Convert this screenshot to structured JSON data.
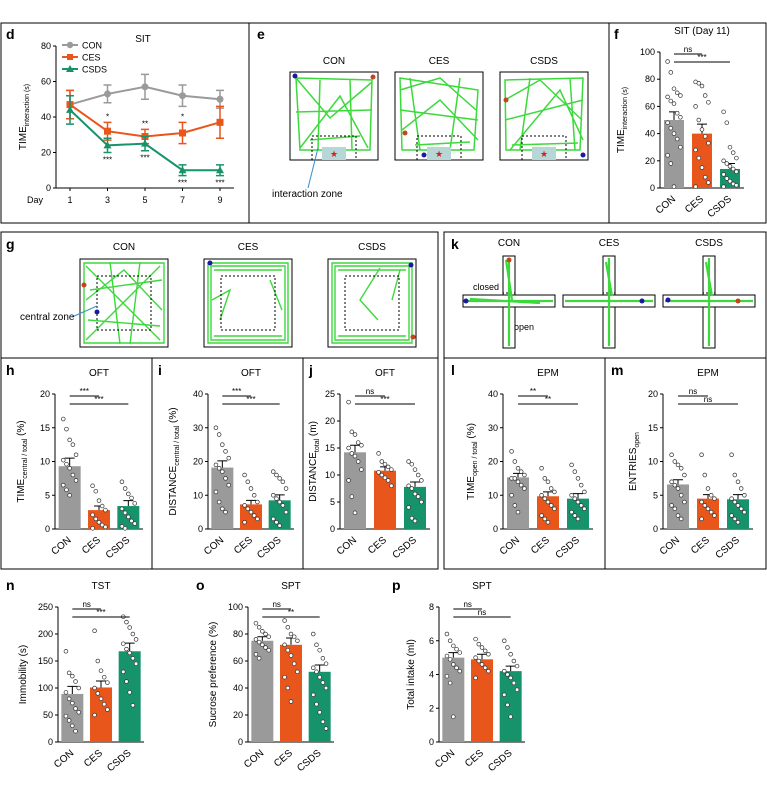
{
  "colors": {
    "con": "#9a9a9a",
    "ces": "#e8561c",
    "csds": "#17936c",
    "track": "#3cd93c"
  },
  "groups": [
    "CON",
    "CES",
    "CSDS"
  ],
  "panel_letters": {
    "d": "d",
    "e": "e",
    "f": "f",
    "g": "g",
    "k": "k",
    "h": "h",
    "i": "i",
    "j": "j",
    "l": "l",
    "m": "m",
    "n": "n",
    "o": "o",
    "p": "p"
  },
  "track_labels": {
    "e_zone": "interaction zone",
    "g_zone": "central zone",
    "k_closed": "closed",
    "k_open": "open"
  },
  "chart_data": [
    {
      "id": "d",
      "type": "line",
      "title": "SIT",
      "xlabel": "Day",
      "ylabel": "TIME interaction (s)",
      "ylabel_main": "TIME",
      "ylabel_sub": "interaction (s)",
      "x": [
        1,
        3,
        5,
        7,
        9
      ],
      "ylim": [
        0,
        80
      ],
      "yticks": [
        "0",
        "20",
        "40",
        "60",
        "80"
      ],
      "xticks": [
        "1",
        "3",
        "5",
        "7",
        "9"
      ],
      "series": [
        {
          "name": "CON",
          "values": [
            47,
            53,
            57,
            52,
            50
          ],
          "err": [
            8,
            5,
            7,
            6,
            5
          ]
        },
        {
          "name": "CES",
          "values": [
            47,
            32,
            29,
            31,
            37
          ],
          "err": [
            8,
            5,
            4,
            6,
            9
          ]
        },
        {
          "name": "CSDS",
          "values": [
            44,
            24,
            25,
            10,
            10
          ],
          "err": [
            8,
            4,
            4,
            3,
            3
          ]
        }
      ],
      "annotations": {
        "ces": [
          "*",
          "**",
          "*"
        ],
        "csds": [
          "***",
          "***",
          "***",
          "***"
        ]
      }
    },
    {
      "id": "f",
      "type": "bar",
      "title": "SIT (Day 11)",
      "ylabel": "TIME interaction (s)",
      "ylabel_main": "TIME",
      "ylabel_sub": "interaction (s)",
      "categories": [
        "CON",
        "CES",
        "CSDS"
      ],
      "values": [
        50,
        40,
        14
      ],
      "err": [
        6,
        7,
        4
      ],
      "ylim": [
        0,
        100
      ],
      "yticks": [
        "0",
        "20",
        "40",
        "60",
        "80",
        "100"
      ],
      "points": [
        [
          93,
          85,
          73,
          70,
          68,
          67,
          64,
          62,
          55,
          52,
          48,
          44,
          40,
          36,
          30,
          24,
          18,
          1
        ],
        [
          78,
          77,
          75,
          68,
          63,
          60,
          50,
          43,
          38,
          33,
          28,
          22,
          15,
          8,
          4,
          1
        ],
        [
          56,
          48,
          30,
          26,
          22,
          20,
          18,
          16,
          14,
          12,
          10,
          7,
          5,
          3,
          2,
          1
        ]
      ],
      "sig": [
        {
          "from": 0,
          "to": 1,
          "text": "ns"
        },
        {
          "from": 0,
          "to": 2,
          "text": "***"
        }
      ]
    },
    {
      "id": "h",
      "type": "bar",
      "title": "OFT",
      "ylabel": "TIME central / total (%)",
      "ylabel_main": "TIME",
      "ylabel_sub": "central / total",
      "ylabel_end": "(%)",
      "categories": [
        "CON",
        "CES",
        "CSDS"
      ],
      "values": [
        9.3,
        2.8,
        3.4
      ],
      "err": [
        1.2,
        0.6,
        0.8
      ],
      "ylim": [
        0,
        20
      ],
      "yticks": [
        "0",
        "5",
        "10",
        "15",
        "20"
      ],
      "points": [
        [
          16.3,
          14.8,
          13.2,
          12.5,
          11.0,
          10.2,
          9.6,
          9.0,
          8.0,
          7.2,
          6.5,
          5.8,
          5.0
        ],
        [
          6.4,
          5.6,
          4.2,
          3.4,
          2.8,
          2.1,
          1.5,
          1.0,
          0.6,
          0.3,
          0.1
        ],
        [
          7.0,
          6.0,
          5.2,
          4.6,
          3.8,
          3.0,
          2.4,
          1.8,
          1.2,
          0.8,
          0.4,
          0.1
        ]
      ],
      "sig": [
        {
          "from": 0,
          "to": 1,
          "text": "***"
        },
        {
          "from": 0,
          "to": 2,
          "text": "***"
        }
      ]
    },
    {
      "id": "i",
      "type": "bar",
      "title": "OFT",
      "ylabel": "DISTANCE central / total (%)",
      "ylabel_main": "DISTANCE",
      "ylabel_sub": "central / total",
      "ylabel_end": "(%)",
      "categories": [
        "CON",
        "CES",
        "CSDS"
      ],
      "values": [
        18.2,
        7.3,
        8.5
      ],
      "err": [
        2.0,
        1.2,
        1.6
      ],
      "ylim": [
        0,
        40
      ],
      "yticks": [
        "0",
        "10",
        "20",
        "30",
        "40"
      ],
      "points": [
        [
          30,
          28,
          25,
          23,
          21,
          19,
          18,
          17,
          15,
          13,
          11,
          8,
          6,
          5
        ],
        [
          16,
          14,
          12,
          10,
          8,
          7,
          6,
          5,
          4,
          3,
          2
        ],
        [
          17,
          16,
          15,
          14,
          12,
          10,
          9,
          8,
          7,
          5,
          3,
          2,
          1
        ]
      ],
      "sig": [
        {
          "from": 0,
          "to": 1,
          "text": "***"
        },
        {
          "from": 0,
          "to": 2,
          "text": "***"
        }
      ]
    },
    {
      "id": "j",
      "type": "bar",
      "title": "OFT",
      "ylabel": "DISTANCE total (m)",
      "ylabel_main": "DISTANCE",
      "ylabel_sub": "total",
      "ylabel_end": "(m)",
      "categories": [
        "CON",
        "CES",
        "CSDS"
      ],
      "values": [
        14.2,
        10.8,
        7.8
      ],
      "err": [
        1.3,
        0.7,
        0.9
      ],
      "ylim": [
        0,
        25
      ],
      "yticks": [
        "0",
        "5",
        "10",
        "15",
        "20",
        "25"
      ],
      "points": [
        [
          23.5,
          18,
          17.5,
          16,
          15.5,
          15,
          14,
          13.5,
          12.5,
          11,
          9,
          6,
          3
        ],
        [
          14,
          12.5,
          12,
          11.5,
          11,
          10.5,
          10,
          9.5,
          9,
          8
        ],
        [
          12.5,
          12,
          11,
          10,
          9,
          8,
          7.5,
          6.5,
          6,
          5,
          4,
          2,
          1.5
        ]
      ],
      "sig": [
        {
          "from": 0,
          "to": 1,
          "text": "ns"
        },
        {
          "from": 0,
          "to": 2,
          "text": "***"
        }
      ]
    },
    {
      "id": "l",
      "type": "bar",
      "title": "EPM",
      "ylabel": "TIME open / total (%)",
      "ylabel_main": "TIME",
      "ylabel_sub": "open / total",
      "ylabel_end": "(%)",
      "categories": [
        "CON",
        "CES",
        "CSDS"
      ],
      "values": [
        15.3,
        9.7,
        9.0
      ],
      "err": [
        1.2,
        1.3,
        1.5
      ],
      "ylim": [
        0,
        40
      ],
      "yticks": [
        "0",
        "10",
        "20",
        "30",
        "40"
      ],
      "points": [
        [
          23,
          20,
          18,
          17,
          16,
          15,
          15,
          14,
          13,
          12,
          10,
          7,
          5
        ],
        [
          18,
          15,
          14,
          12,
          11,
          10,
          9,
          8,
          7,
          6,
          4,
          3,
          2
        ],
        [
          19,
          17,
          15,
          13,
          11,
          10,
          9,
          8,
          7,
          6,
          5,
          4,
          3
        ]
      ],
      "sig": [
        {
          "from": 0,
          "to": 1,
          "text": "**"
        },
        {
          "from": 0,
          "to": 2,
          "text": "**"
        }
      ]
    },
    {
      "id": "m",
      "type": "bar",
      "title": "EPM",
      "ylabel": "ENTRIES open",
      "ylabel_main": "ENTRIES",
      "ylabel_sub": "open",
      "categories": [
        "CON",
        "CES",
        "CSDS"
      ],
      "values": [
        6.6,
        4.5,
        4.4
      ],
      "err": [
        0.7,
        0.6,
        0.7
      ],
      "ylim": [
        0,
        20
      ],
      "yticks": [
        "0",
        "5",
        "10",
        "15",
        "20"
      ],
      "points": [
        [
          11,
          10,
          9.5,
          9,
          8,
          7,
          6.5,
          6,
          5,
          4,
          3.5,
          3,
          2,
          1.5
        ],
        [
          11,
          8,
          6,
          5,
          4.5,
          4,
          3.5,
          3,
          2.5,
          2,
          1.5
        ],
        [
          11,
          8,
          7,
          6,
          5,
          4.5,
          4,
          3.5,
          3,
          2.5,
          2,
          1.5,
          1
        ]
      ],
      "sig": [
        {
          "from": 0,
          "to": 1,
          "text": "ns"
        },
        {
          "from": 0,
          "to": 2,
          "text": "ns"
        }
      ]
    },
    {
      "id": "n",
      "type": "bar",
      "title": "TST",
      "ylabel": "Immobility (s)",
      "categories": [
        "CON",
        "CES",
        "CSDS"
      ],
      "values": [
        89,
        101,
        168
      ],
      "err": [
        14,
        12,
        15
      ],
      "ylim": [
        0,
        250
      ],
      "yticks": [
        "0",
        "50",
        "100",
        "150",
        "200",
        "250"
      ],
      "points": [
        [
          168,
          128,
          122,
          112,
          100,
          92,
          80,
          72,
          62,
          55,
          48,
          40,
          30,
          20
        ],
        [
          206,
          150,
          132,
          120,
          110,
          100,
          90,
          80,
          70,
          60,
          50
        ],
        [
          232,
          222,
          212,
          200,
          190,
          182,
          172,
          165,
          155,
          145,
          130,
          112,
          92,
          68
        ]
      ],
      "sig": [
        {
          "from": 0,
          "to": 1,
          "text": "ns"
        },
        {
          "from": 0,
          "to": 2,
          "text": "***"
        }
      ]
    },
    {
      "id": "o",
      "type": "bar",
      "title": "SPT",
      "ylabel": "Sucrose preference (%)",
      "categories": [
        "CON",
        "CES",
        "CSDS"
      ],
      "values": [
        75,
        72,
        52
      ],
      "err": [
        3,
        5,
        5
      ],
      "ylim": [
        0,
        100
      ],
      "yticks": [
        "0",
        "20",
        "40",
        "60",
        "80",
        "100"
      ],
      "points": [
        [
          88,
          85,
          82,
          80,
          78,
          76,
          74,
          72,
          70,
          68,
          65,
          62
        ],
        [
          90,
          85,
          80,
          78,
          75,
          72,
          68,
          64,
          58,
          52,
          48,
          40,
          30
        ],
        [
          80,
          72,
          68,
          62,
          58,
          55,
          52,
          48,
          44,
          40,
          35,
          28,
          22,
          15,
          10
        ]
      ],
      "sig": [
        {
          "from": 0,
          "to": 1,
          "text": "ns"
        },
        {
          "from": 0,
          "to": 2,
          "text": "**"
        }
      ]
    },
    {
      "id": "p",
      "type": "bar",
      "title": "SPT",
      "ylabel": "Total intake (ml)",
      "categories": [
        "CON",
        "CES",
        "CSDS"
      ],
      "values": [
        5.0,
        4.9,
        4.2
      ],
      "err": [
        0.3,
        0.3,
        0.3
      ],
      "ylim": [
        0,
        8
      ],
      "yticks": [
        "0",
        "2",
        "4",
        "6",
        "8"
      ],
      "points": [
        [
          6.4,
          6.0,
          5.7,
          5.5,
          5.3,
          5.1,
          4.9,
          4.6,
          4.4,
          4.2,
          3.9,
          3.5,
          1.5
        ],
        [
          6.1,
          5.8,
          5.6,
          5.4,
          5.2,
          5.0,
          4.8,
          4.6,
          4.4,
          4.2,
          3.8
        ],
        [
          6.0,
          5.6,
          5.2,
          4.8,
          4.5,
          4.2,
          4.0,
          3.8,
          3.5,
          3.1,
          2.8,
          2.2,
          1.5
        ]
      ],
      "sig": [
        {
          "from": 0,
          "to": 1,
          "text": "ns"
        },
        {
          "from": 0,
          "to": 2,
          "text": "ns"
        }
      ]
    }
  ]
}
